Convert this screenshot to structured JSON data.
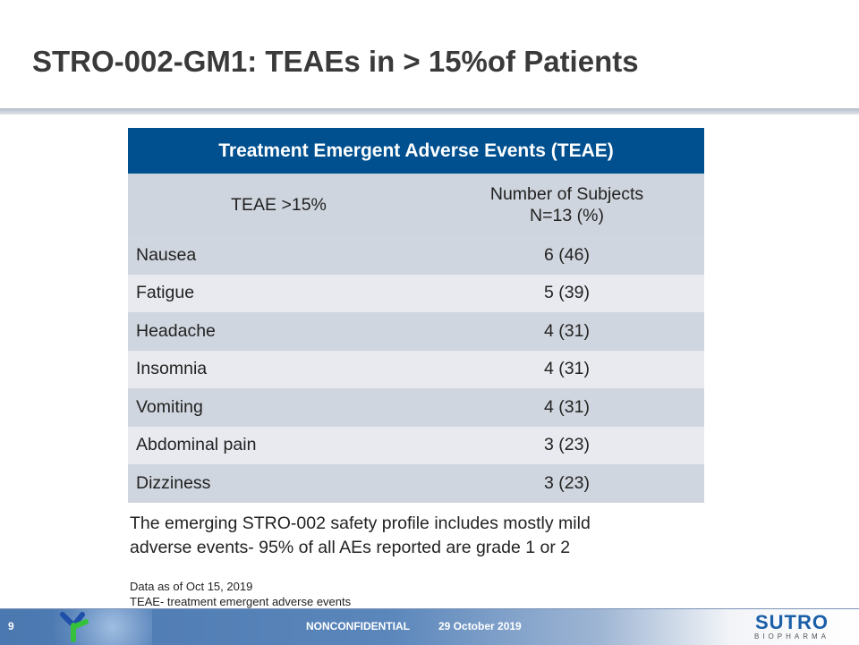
{
  "title": "STRO-002-GM1: TEAEs in > 15%of Patients",
  "table": {
    "caption": "Treatment Emergent Adverse Events (TEAE)",
    "col1": "TEAE >15%",
    "col2_line1": "Number of Subjects",
    "col2_line2": "N=13 (%)",
    "rows": [
      {
        "event": "Nausea",
        "value": "6 (46)"
      },
      {
        "event": "Fatigue",
        "value": "5 (39)"
      },
      {
        "event": "Headache",
        "value": "4 (31)"
      },
      {
        "event": "Insomnia",
        "value": "4 (31)"
      },
      {
        "event": "Vomiting",
        "value": "4 (31)"
      },
      {
        "event": "Abdominal pain",
        "value": "3 (23)"
      },
      {
        "event": "Dizziness",
        "value": "3 (23)"
      }
    ]
  },
  "note_line1": "The emerging STRO-002 safety profile includes mostly mild",
  "note_line2": "adverse events- 95% of all AEs reported are grade 1 or 2",
  "footnote_line1": "Data as of Oct 15, 2019",
  "footnote_line2": "TEAE- treatment emergent adverse events",
  "footer": {
    "page": "9",
    "confidentiality": "NONCONFIDENTIAL",
    "date": "29 October 2019",
    "logo_main": "SUTRO",
    "logo_sub": "BIOPHARMA"
  },
  "colors": {
    "header": "#00508f",
    "brand": "#1a5fa8"
  }
}
